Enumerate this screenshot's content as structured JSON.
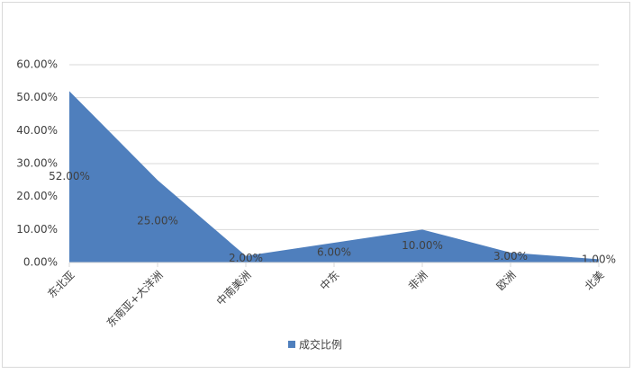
{
  "chart_data": {
    "type": "area",
    "categories": [
      "东北亚",
      "东南亚+大洋洲",
      "中南美洲",
      "中东",
      "非洲",
      "欧洲",
      "北美"
    ],
    "series": [
      {
        "name": "成交比例",
        "color": "#4f7fbd",
        "values": [
          52,
          25,
          2,
          6,
          10,
          3,
          1
        ],
        "value_labels": [
          "52.00%",
          "25.00%",
          "2.00%",
          "6.00%",
          "10.00%",
          "3.00%",
          "1.00%"
        ]
      }
    ],
    "ylim": [
      0,
      60
    ],
    "yticks": [
      {
        "value": 0,
        "label": "0.00%"
      },
      {
        "value": 10,
        "label": "10.00%"
      },
      {
        "value": 20,
        "label": "20.00%"
      },
      {
        "value": 30,
        "label": "30.00%"
      },
      {
        "value": 40,
        "label": "40.00%"
      },
      {
        "value": 50,
        "label": "50.00%"
      },
      {
        "value": 60,
        "label": "60.00%"
      }
    ],
    "grid": true,
    "legend": "bottom"
  }
}
